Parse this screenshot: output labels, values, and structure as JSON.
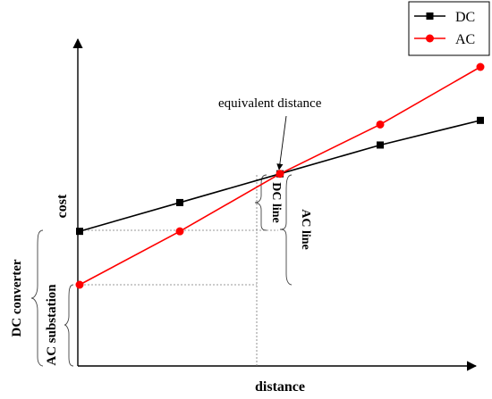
{
  "chart_data": {
    "type": "line",
    "xlabel": "distance",
    "ylabel": "cost",
    "grid": false,
    "legend_position": "top-right",
    "series": [
      {
        "name": "DC",
        "color": "#000000",
        "marker": "square",
        "x": [
          0,
          1,
          2,
          3,
          4
        ],
        "y": [
          3.3,
          4.0,
          4.7,
          5.4,
          6.0
        ]
      },
      {
        "name": "AC",
        "color": "#ff0000",
        "marker": "circle",
        "x": [
          0,
          1,
          2,
          3,
          4
        ],
        "y": [
          2.0,
          3.3,
          4.7,
          5.9,
          7.3
        ]
      }
    ],
    "annotations": {
      "equivalent_distance": "equivalent distance",
      "dc_line": "DC line",
      "ac_line": "AC line",
      "dc_converter": "DC converter",
      "ac_substation": "AC substation"
    }
  }
}
